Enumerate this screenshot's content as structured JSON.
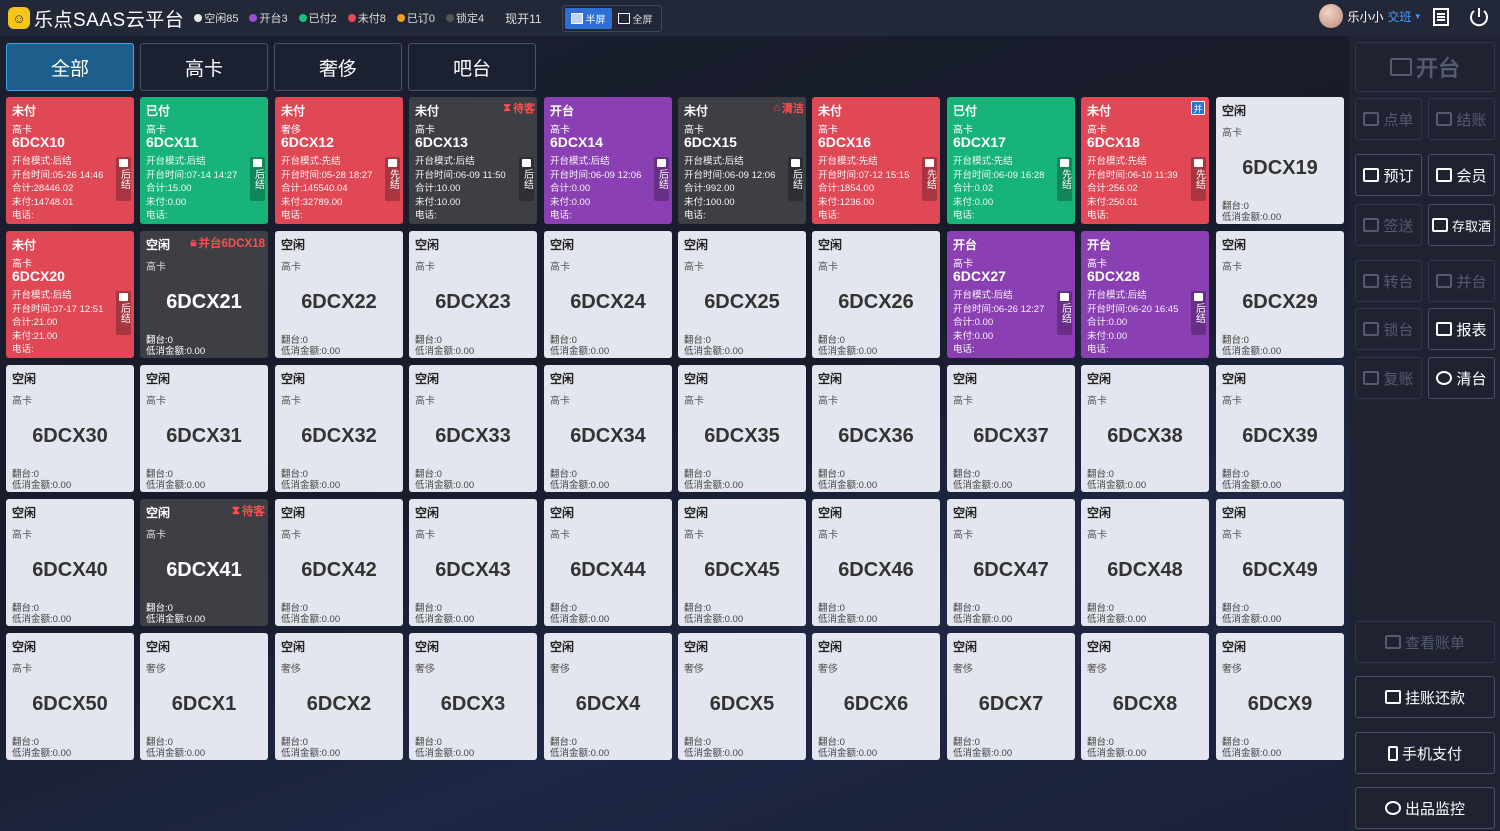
{
  "app": {
    "title": "乐点SAAS云平台"
  },
  "stats": [
    {
      "label": "空闲85",
      "color": "#e6e6e6"
    },
    {
      "label": "开台3",
      "color": "#9b4fd0"
    },
    {
      "label": "已付2",
      "color": "#19c37d"
    },
    {
      "label": "未付8",
      "color": "#e84a5a"
    },
    {
      "label": "已订0",
      "color": "#f0a020"
    },
    {
      "label": "锁定4",
      "color": "#555555"
    }
  ],
  "total_open": "现开11",
  "view_modes": [
    {
      "label": "半屏",
      "active": true
    },
    {
      "label": "全屏",
      "active": false
    }
  ],
  "user": {
    "name": "乐小小",
    "shift": "交班"
  },
  "tabs": [
    "全部",
    "高卡",
    "奢侈",
    "吧台"
  ],
  "cards_busy": [
    {
      "status": "未付",
      "area": "高卡",
      "code": "6DCX10",
      "lines": [
        "开台模式:后结",
        "开台时间:05-26 14:46",
        "合计:28446.02",
        "未付:14748.01",
        "电话:"
      ],
      "side": "后结",
      "color": "red"
    },
    {
      "status": "已付",
      "area": "高卡",
      "code": "6DCX11",
      "lines": [
        "开台模式:后结",
        "开台时间:07-14 14:27",
        "合计:15.00",
        "未付:0.00",
        "电话:"
      ],
      "side": "后结",
      "color": "green"
    },
    {
      "status": "未付",
      "area": "奢侈",
      "code": "6DCX12",
      "lines": [
        "开台模式:先结",
        "开台时间:05-28 18:27",
        "合计:145540.04",
        "未付:32789.00",
        "电话:"
      ],
      "side": "先结",
      "color": "red"
    },
    {
      "status": "未付",
      "area": "高卡",
      "code": "6DCX13",
      "lines": [
        "开台模式:后结",
        "开台时间:06-09 11:50",
        "合计:10.00",
        "未付:10.00",
        "电话:"
      ],
      "side": "后结",
      "color": "dark",
      "tag": "待客"
    },
    {
      "status": "开台",
      "area": "高卡",
      "code": "6DCX14",
      "lines": [
        "开台模式:后结",
        "开台时间:06-09 12:06",
        "合计:0.00",
        "未付:0.00",
        "电话:"
      ],
      "side": "后结",
      "color": "purple"
    },
    {
      "status": "未付",
      "area": "高卡",
      "code": "6DCX15",
      "lines": [
        "开台模式:后结",
        "开台时间:06-09 12:06",
        "合计:992.00",
        "未付:100.00",
        "电话:"
      ],
      "side": "后结",
      "color": "dark",
      "tag": "清洁"
    },
    {
      "status": "未付",
      "area": "高卡",
      "code": "6DCX16",
      "lines": [
        "开台模式:先结",
        "开台时间:07-12 15:15",
        "合计:1854.00",
        "未付:1236.00",
        "电话:"
      ],
      "side": "先结",
      "color": "red"
    },
    {
      "status": "已付",
      "area": "高卡",
      "code": "6DCX17",
      "lines": [
        "开台模式:先结",
        "开台时间:06-09 16:28",
        "合计:0.02",
        "未付:0.00",
        "电话:"
      ],
      "side": "先结",
      "color": "green"
    },
    {
      "status": "未付",
      "area": "高卡",
      "code": "6DCX18",
      "lines": [
        "开台模式:先结",
        "开台时间:06-10 11:39",
        "合计:256.02",
        "未付:250.01",
        "电话:"
      ],
      "side": "先结",
      "color": "red",
      "badge": "并"
    },
    {
      "status": "未付",
      "area": "高卡",
      "code": "6DCX20",
      "lines": [
        "开台模式:后结",
        "开台时间:07-17 12:51",
        "合计:21.00",
        "未付:21.00",
        "电话:"
      ],
      "side": "后结",
      "color": "red"
    },
    {
      "status": "开台",
      "area": "高卡",
      "code": "6DCX27",
      "lines": [
        "开台模式:后结",
        "开台时间:06-26 12:27",
        "合计:0.00",
        "未付:0.00",
        "电话:"
      ],
      "side": "后结",
      "color": "purple"
    },
    {
      "status": "开台",
      "area": "高卡",
      "code": "6DCX28",
      "lines": [
        "开台模式:后结",
        "开台时间:06-20 16:45",
        "合计:0.00",
        "未付:0.00",
        "电话:"
      ],
      "side": "后结",
      "color": "purple"
    }
  ],
  "cards_idle": [
    {
      "status": "空闲",
      "area": "高卡",
      "code": "6DCX19"
    },
    {
      "status": "空闲",
      "area": "高卡",
      "code": "6DCX21",
      "dark": true,
      "tag": "并台6DCX18"
    },
    {
      "status": "空闲",
      "area": "高卡",
      "code": "6DCX22"
    },
    {
      "status": "空闲",
      "area": "高卡",
      "code": "6DCX23"
    },
    {
      "status": "空闲",
      "area": "高卡",
      "code": "6DCX24"
    },
    {
      "status": "空闲",
      "area": "高卡",
      "code": "6DCX25"
    },
    {
      "status": "空闲",
      "area": "高卡",
      "code": "6DCX26"
    },
    {
      "status": "空闲",
      "area": "高卡",
      "code": "6DCX29"
    },
    {
      "status": "空闲",
      "area": "高卡",
      "code": "6DCX30"
    },
    {
      "status": "空闲",
      "area": "高卡",
      "code": "6DCX31"
    },
    {
      "status": "空闲",
      "area": "高卡",
      "code": "6DCX32"
    },
    {
      "status": "空闲",
      "area": "高卡",
      "code": "6DCX33"
    },
    {
      "status": "空闲",
      "area": "高卡",
      "code": "6DCX34"
    },
    {
      "status": "空闲",
      "area": "高卡",
      "code": "6DCX35"
    },
    {
      "status": "空闲",
      "area": "高卡",
      "code": "6DCX36"
    },
    {
      "status": "空闲",
      "area": "高卡",
      "code": "6DCX37"
    },
    {
      "status": "空闲",
      "area": "高卡",
      "code": "6DCX38"
    },
    {
      "status": "空闲",
      "area": "高卡",
      "code": "6DCX39"
    },
    {
      "status": "空闲",
      "area": "高卡",
      "code": "6DCX40"
    },
    {
      "status": "空闲",
      "area": "高卡",
      "code": "6DCX41",
      "dark": true,
      "tag": "待客"
    },
    {
      "status": "空闲",
      "area": "高卡",
      "code": "6DCX42"
    },
    {
      "status": "空闲",
      "area": "高卡",
      "code": "6DCX43"
    },
    {
      "status": "空闲",
      "area": "高卡",
      "code": "6DCX44"
    },
    {
      "status": "空闲",
      "area": "高卡",
      "code": "6DCX45"
    },
    {
      "status": "空闲",
      "area": "高卡",
      "code": "6DCX46"
    },
    {
      "status": "空闲",
      "area": "高卡",
      "code": "6DCX47"
    },
    {
      "status": "空闲",
      "area": "高卡",
      "code": "6DCX48"
    },
    {
      "status": "空闲",
      "area": "高卡",
      "code": "6DCX49"
    },
    {
      "status": "空闲",
      "area": "高卡",
      "code": "6DCX50"
    },
    {
      "status": "空闲",
      "area": "奢侈",
      "code": "6DCX1"
    },
    {
      "status": "空闲",
      "area": "奢侈",
      "code": "6DCX2"
    },
    {
      "status": "空闲",
      "area": "奢侈",
      "code": "6DCX3"
    },
    {
      "status": "空闲",
      "area": "奢侈",
      "code": "6DCX4"
    },
    {
      "status": "空闲",
      "area": "奢侈",
      "code": "6DCX5"
    },
    {
      "status": "空闲",
      "area": "奢侈",
      "code": "6DCX6"
    },
    {
      "status": "空闲",
      "area": "奢侈",
      "code": "6DCX7"
    },
    {
      "status": "空闲",
      "area": "奢侈",
      "code": "6DCX8"
    },
    {
      "status": "空闲",
      "area": "奢侈",
      "code": "6DCX9"
    }
  ],
  "idle_foot": [
    "翻台:0",
    "低消金额:0.00"
  ],
  "right_panel": {
    "open": "开台",
    "order": "点单",
    "checkout": "结账",
    "reserve": "预订",
    "member": "会员",
    "sign": "签送",
    "wine": "存取酒",
    "transfer": "转台",
    "merge": "并台",
    "lock": "锁台",
    "report": "报表",
    "rebill": "复账",
    "clear": "清台",
    "view_bill": "查看账单",
    "repay": "挂账还款",
    "mobile_pay": "手机支付",
    "monitor": "出品监控"
  }
}
